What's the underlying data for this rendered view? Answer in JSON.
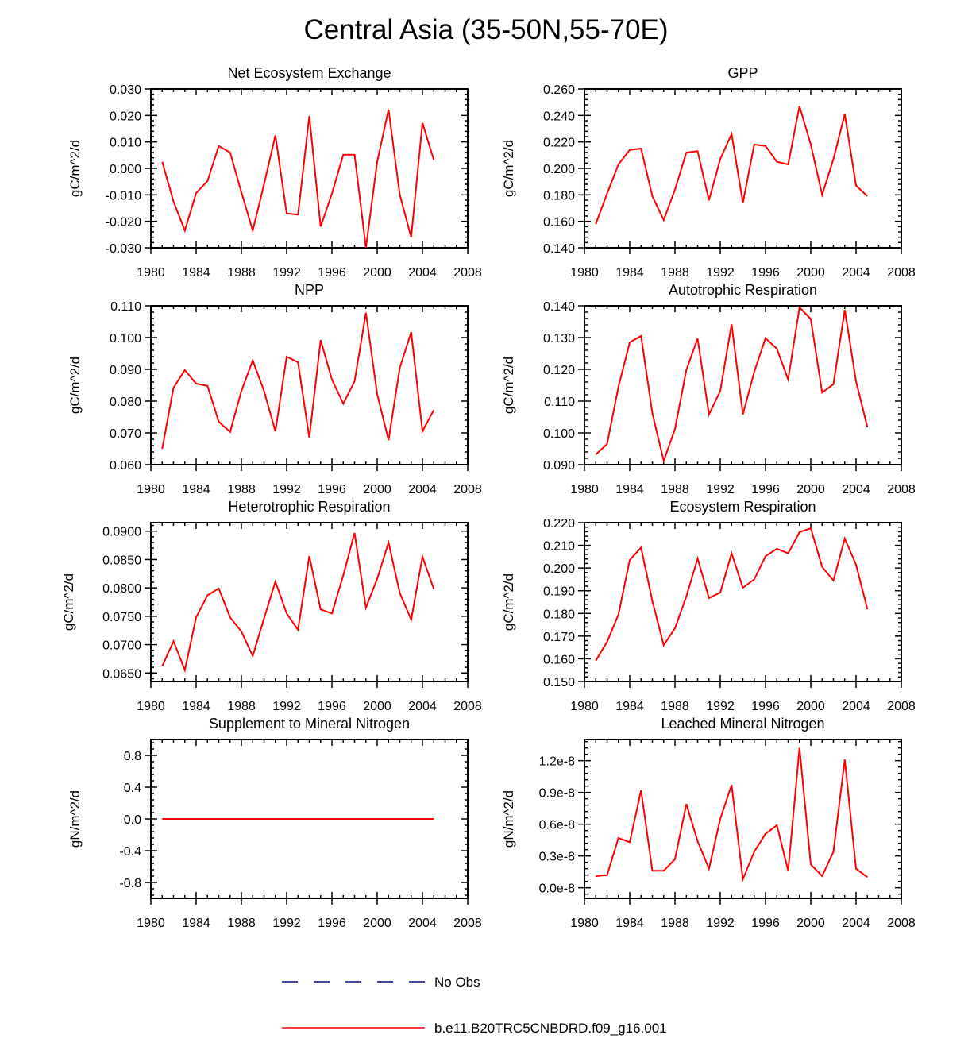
{
  "page": {
    "title": "Central Asia (35-50N,55-70E)"
  },
  "legend": {
    "obs_label": "No Obs",
    "obs_color": "#000080",
    "model_label": "b.e11.B20TRC5CNBDRD.f09_g16.001",
    "model_color": "#ff0000"
  },
  "chart_data": [
    {
      "type": "line",
      "title": "Net Ecosystem Exchange",
      "ylabel": "gC/m^2/d",
      "xlim": [
        1980,
        2008
      ],
      "xticks": [
        1980,
        1984,
        1988,
        1992,
        1996,
        2000,
        2004,
        2008
      ],
      "ylim": [
        -0.03,
        0.03
      ],
      "yticks": [
        -0.03,
        -0.02,
        -0.01,
        0.0,
        0.01,
        0.02,
        0.03
      ],
      "yticklabels": [
        "-0.030",
        "-0.020",
        "-0.010",
        "0.000",
        "0.010",
        "0.020",
        "0.030"
      ],
      "series": [
        {
          "name": "b.e11.B20TRC5CNBDRD.f09_g16.001",
          "color": "#ff0000",
          "x": [
            1981,
            1982,
            1983,
            1984,
            1985,
            1986,
            1987,
            1988,
            1989,
            1990,
            1991,
            1992,
            1993,
            1994,
            1995,
            1996,
            1997,
            1998,
            1999,
            2000,
            2001,
            2002,
            2003,
            2004,
            2005
          ],
          "y": [
            0.0025,
            -0.0125,
            -0.0235,
            -0.0093,
            -0.0048,
            0.0085,
            0.006,
            -0.009,
            -0.0235,
            -0.006,
            0.0125,
            -0.017,
            -0.0175,
            0.0198,
            -0.022,
            -0.0095,
            0.0052,
            0.0052,
            -0.03,
            0.0025,
            0.0222,
            -0.01,
            -0.026,
            0.0172,
            0.0032
          ]
        }
      ]
    },
    {
      "type": "line",
      "title": "GPP",
      "ylabel": "gC/m^2/d",
      "xlim": [
        1980,
        2008
      ],
      "xticks": [
        1980,
        1984,
        1988,
        1992,
        1996,
        2000,
        2004,
        2008
      ],
      "ylim": [
        0.14,
        0.26
      ],
      "yticks": [
        0.14,
        0.16,
        0.18,
        0.2,
        0.22,
        0.24,
        0.26
      ],
      "yticklabels": [
        "0.140",
        "0.160",
        "0.180",
        "0.200",
        "0.220",
        "0.240",
        "0.260"
      ],
      "series": [
        {
          "name": "b.e11.B20TRC5CNBDRD.f09_g16.001",
          "color": "#ff0000",
          "x": [
            1981,
            1982,
            1983,
            1984,
            1985,
            1986,
            1987,
            1988,
            1989,
            1990,
            1991,
            1992,
            1993,
            1994,
            1995,
            1996,
            1997,
            1998,
            1999,
            2000,
            2001,
            2002,
            2003,
            2004,
            2005
          ],
          "y": [
            0.158,
            0.181,
            0.203,
            0.214,
            0.215,
            0.179,
            0.161,
            0.184,
            0.212,
            0.213,
            0.176,
            0.207,
            0.226,
            0.174,
            0.218,
            0.217,
            0.205,
            0.203,
            0.247,
            0.218,
            0.18,
            0.207,
            0.241,
            0.187,
            0.179
          ]
        }
      ]
    },
    {
      "type": "line",
      "title": "NPP",
      "ylabel": "gC/m^2/d",
      "xlim": [
        1980,
        2008
      ],
      "xticks": [
        1980,
        1984,
        1988,
        1992,
        1996,
        2000,
        2004,
        2008
      ],
      "ylim": [
        0.06,
        0.11
      ],
      "yticks": [
        0.06,
        0.07,
        0.08,
        0.09,
        0.1,
        0.11
      ],
      "yticklabels": [
        "0.060",
        "0.070",
        "0.080",
        "0.090",
        "0.100",
        "0.110"
      ],
      "series": [
        {
          "name": "b.e11.B20TRC5CNBDRD.f09_g16.001",
          "color": "#ff0000",
          "x": [
            1981,
            1982,
            1983,
            1984,
            1985,
            1986,
            1987,
            1988,
            1989,
            1990,
            1991,
            1992,
            1993,
            1994,
            1995,
            1996,
            1997,
            1998,
            1999,
            2000,
            2001,
            2002,
            2003,
            2004,
            2005
          ],
          "y": [
            0.065,
            0.0842,
            0.0898,
            0.0855,
            0.0848,
            0.0735,
            0.0703,
            0.0832,
            0.0928,
            0.0832,
            0.0705,
            0.094,
            0.0922,
            0.0685,
            0.0992,
            0.0868,
            0.0792,
            0.0862,
            0.1078,
            0.0822,
            0.0677,
            0.0905,
            0.1017,
            0.0705,
            0.0772
          ]
        }
      ]
    },
    {
      "type": "line",
      "title": "Autotrophic Respiration",
      "ylabel": "gC/m^2/d",
      "xlim": [
        1980,
        2008
      ],
      "xticks": [
        1980,
        1984,
        1988,
        1992,
        1996,
        2000,
        2004,
        2008
      ],
      "ylim": [
        0.09,
        0.14
      ],
      "yticks": [
        0.09,
        0.1,
        0.11,
        0.12,
        0.13,
        0.14
      ],
      "yticklabels": [
        "0.090",
        "0.100",
        "0.110",
        "0.120",
        "0.130",
        "0.140"
      ],
      "series": [
        {
          "name": "b.e11.B20TRC5CNBDRD.f09_g16.001",
          "color": "#ff0000",
          "x": [
            1981,
            1982,
            1983,
            1984,
            1985,
            1986,
            1987,
            1988,
            1989,
            1990,
            1991,
            1992,
            1993,
            1994,
            1995,
            1996,
            1997,
            1998,
            1999,
            2000,
            2001,
            2002,
            2003,
            2004,
            2005
          ],
          "y": [
            0.0932,
            0.0965,
            0.1145,
            0.1285,
            0.1305,
            0.1062,
            0.0912,
            0.1012,
            0.1198,
            0.1297,
            0.1058,
            0.1132,
            0.1342,
            0.1058,
            0.1192,
            0.1298,
            0.1265,
            0.1168,
            0.1395,
            0.1358,
            0.1127,
            0.1153,
            0.1387,
            0.1162,
            0.1018
          ]
        }
      ]
    },
    {
      "type": "line",
      "title": "Heterotrophic Respiration",
      "ylabel": "gC/m^2/d",
      "xlim": [
        1980,
        2008
      ],
      "xticks": [
        1980,
        1984,
        1988,
        1992,
        1996,
        2000,
        2004,
        2008
      ],
      "ylim": [
        0.0635,
        0.0915
      ],
      "yticks": [
        0.065,
        0.07,
        0.075,
        0.08,
        0.085,
        0.09
      ],
      "yticklabels": [
        "0.0650",
        "0.0700",
        "0.0750",
        "0.0800",
        "0.0850",
        "0.0900"
      ],
      "series": [
        {
          "name": "b.e11.B20TRC5CNBDRD.f09_g16.001",
          "color": "#ff0000",
          "x": [
            1981,
            1982,
            1983,
            1984,
            1985,
            1986,
            1987,
            1988,
            1989,
            1990,
            1991,
            1992,
            1993,
            1994,
            1995,
            1996,
            1997,
            1998,
            1999,
            2000,
            2001,
            2002,
            2003,
            2004,
            2005
          ],
          "y": [
            0.0662,
            0.0706,
            0.0655,
            0.0748,
            0.0787,
            0.0799,
            0.0748,
            0.0723,
            0.068,
            0.0746,
            0.0811,
            0.0755,
            0.0726,
            0.0856,
            0.0762,
            0.0755,
            0.0822,
            0.0897,
            0.0765,
            0.0816,
            0.088,
            0.0791,
            0.0744,
            0.0855,
            0.0798
          ]
        }
      ]
    },
    {
      "type": "line",
      "title": "Ecosystem Respiration",
      "ylabel": "gC/m^2/d",
      "xlim": [
        1980,
        2008
      ],
      "xticks": [
        1980,
        1984,
        1988,
        1992,
        1996,
        2000,
        2004,
        2008
      ],
      "ylim": [
        0.15,
        0.22
      ],
      "yticks": [
        0.15,
        0.16,
        0.17,
        0.18,
        0.19,
        0.2,
        0.21,
        0.22
      ],
      "yticklabels": [
        "0.150",
        "0.160",
        "0.170",
        "0.180",
        "0.190",
        "0.200",
        "0.210",
        "0.220"
      ],
      "series": [
        {
          "name": "b.e11.B20TRC5CNBDRD.f09_g16.001",
          "color": "#ff0000",
          "x": [
            1981,
            1982,
            1983,
            1984,
            1985,
            1986,
            1987,
            1988,
            1989,
            1990,
            1991,
            1992,
            1993,
            1994,
            1995,
            1996,
            1997,
            1998,
            1999,
            2000,
            2001,
            2002,
            2003,
            2004,
            2005
          ],
          "y": [
            0.1592,
            0.1675,
            0.1795,
            0.2035,
            0.209,
            0.1855,
            0.166,
            0.1735,
            0.1875,
            0.2042,
            0.1868,
            0.1892,
            0.2065,
            0.1913,
            0.195,
            0.2052,
            0.2085,
            0.2065,
            0.2158,
            0.2175,
            0.2005,
            0.1945,
            0.213,
            0.2015,
            0.1818
          ]
        }
      ]
    },
    {
      "type": "line",
      "title": "Supplement to Mineral Nitrogen",
      "ylabel": "gN/m^2/d",
      "xlim": [
        1980,
        2008
      ],
      "xticks": [
        1980,
        1984,
        1988,
        1992,
        1996,
        2000,
        2004,
        2008
      ],
      "ylim": [
        -1.0,
        1.0
      ],
      "yticks": [
        -0.8,
        -0.4,
        0.0,
        0.4,
        0.8
      ],
      "yticklabels": [
        "-0.8",
        "-0.4",
        "0.0",
        "0.4",
        "0.8"
      ],
      "series": [
        {
          "name": "b.e11.B20TRC5CNBDRD.f09_g16.001",
          "color": "#ff0000",
          "x": [
            1981,
            1982,
            1983,
            1984,
            1985,
            1986,
            1987,
            1988,
            1989,
            1990,
            1991,
            1992,
            1993,
            1994,
            1995,
            1996,
            1997,
            1998,
            1999,
            2000,
            2001,
            2002,
            2003,
            2004,
            2005
          ],
          "y": [
            0,
            0,
            0,
            0,
            0,
            0,
            0,
            0,
            0,
            0,
            0,
            0,
            0,
            0,
            0,
            0,
            0,
            0,
            0,
            0,
            0,
            0,
            0,
            0,
            0
          ]
        }
      ]
    },
    {
      "type": "line",
      "title": "Leached Mineral Nitrogen",
      "ylabel": "gN/m^2/d",
      "xlim": [
        1980,
        2008
      ],
      "xticks": [
        1980,
        1984,
        1988,
        1992,
        1996,
        2000,
        2004,
        2008
      ],
      "ylim": [
        -1e-09,
        1.4e-08
      ],
      "yticks": [
        0.0,
        3e-09,
        6e-09,
        9e-09,
        1.2e-08
      ],
      "yticklabels": [
        "0.0e-8",
        "0.3e-8",
        "0.6e-8",
        "0.9e-8",
        "1.2e-8"
      ],
      "series": [
        {
          "name": "b.e11.B20TRC5CNBDRD.f09_g16.001",
          "color": "#ff0000",
          "x": [
            1981,
            1982,
            1983,
            1984,
            1985,
            1986,
            1987,
            1988,
            1989,
            1990,
            1991,
            1992,
            1993,
            1994,
            1995,
            1996,
            1997,
            1998,
            1999,
            2000,
            2001,
            2002,
            2003,
            2004,
            2005
          ],
          "y": [
            1.1e-09,
            1.2e-09,
            4.7e-09,
            4.3e-09,
            9.2e-09,
            1.6e-09,
            1.6e-09,
            2.7e-09,
            7.9e-09,
            4.4e-09,
            1.8e-09,
            6.5e-09,
            9.7e-09,
            8e-10,
            3.4e-09,
            5.1e-09,
            5.9e-09,
            1.6e-09,
            1.32e-08,
            2.2e-09,
            1.1e-09,
            3.4e-09,
            1.21e-08,
            1.8e-09,
            1e-09
          ]
        }
      ]
    }
  ]
}
